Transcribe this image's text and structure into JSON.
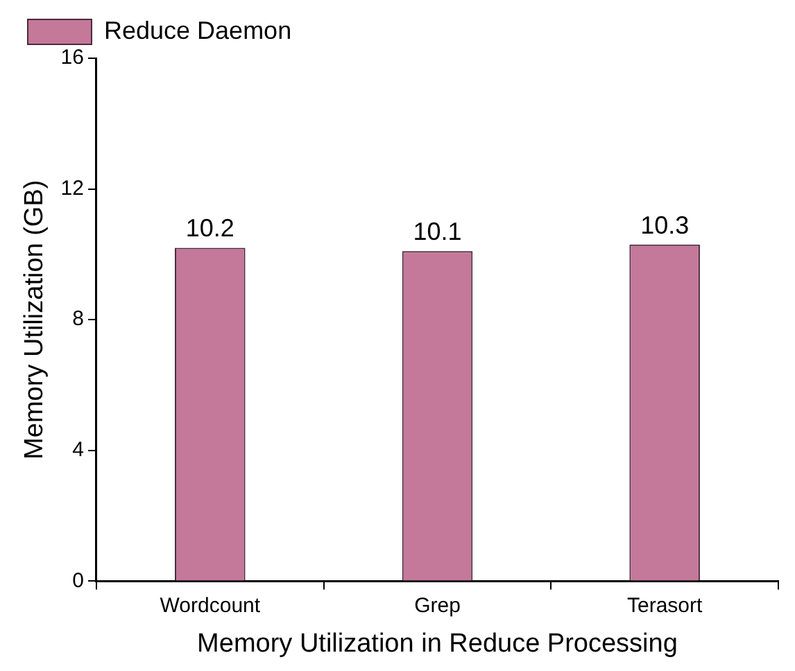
{
  "chart_data": {
    "type": "bar",
    "xlabel": "Memory Utilization in Reduce Processing",
    "ylabel": "Memory Utilization (GB)",
    "categories": [
      "Wordcount",
      "Grep",
      "Terasort"
    ],
    "series": [
      {
        "name": "Reduce Daemon",
        "color": "#c4789a",
        "values": [
          10.2,
          10.1,
          10.3
        ]
      }
    ],
    "ylim": [
      0,
      16
    ],
    "yticks": [
      0,
      4,
      8,
      12,
      16
    ],
    "data_labels": true,
    "legend": "top left",
    "grid": false
  }
}
